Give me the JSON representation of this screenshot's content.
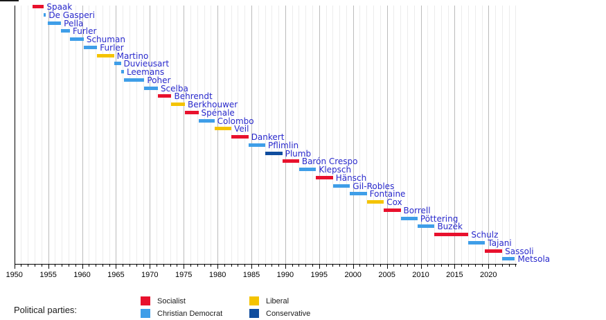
{
  "legend": {
    "heading": "Political parties:",
    "items": [
      {
        "party": "socialist",
        "label": "Socialist"
      },
      {
        "party": "christian_democrat",
        "label": "Christian Democrat"
      },
      {
        "party": "liberal",
        "label": "Liberal"
      },
      {
        "party": "conservative",
        "label": "Conservative"
      }
    ]
  },
  "parties": {
    "socialist": {
      "label": "Socialist",
      "color": "#e8112d"
    },
    "christian_democrat": {
      "label": "Christian Democrat",
      "color": "#3f9ee8"
    },
    "liberal": {
      "label": "Liberal",
      "color": "#f4c300"
    },
    "conservative": {
      "label": "Conservative",
      "color": "#0f4d9e"
    }
  },
  "colors": {
    "bar_label_text": "#2929cc",
    "axis": "#000000",
    "major_gridline": "#bbbbbb",
    "minor_gridline": "#ececec"
  },
  "chart_data": {
    "type": "bar",
    "subtype": "timeline",
    "title": "",
    "xlabel": "",
    "ylabel": "",
    "x_axis": {
      "min": 1950,
      "max": 2024.2,
      "major_tick_interval": 5,
      "minor_tick_interval": 1,
      "tick_labels": [
        "1950",
        "1955",
        "1960",
        "1965",
        "1970",
        "1975",
        "1980",
        "1985",
        "1990",
        "1995",
        "2000",
        "2005",
        "2010",
        "2015",
        "2020"
      ]
    },
    "grid": true,
    "legend_position": "bottom",
    "rows": [
      {
        "name": "Spaak",
        "party": "socialist",
        "start": 1952.7,
        "end": 1954.36
      },
      {
        "name": "De Gasperi",
        "party": "christian_democrat",
        "start": 1954.36,
        "end": 1954.63
      },
      {
        "name": "Pella",
        "party": "christian_democrat",
        "start": 1954.89,
        "end": 1956.9
      },
      {
        "name": "Furler",
        "party": "christian_democrat",
        "start": 1956.9,
        "end": 1958.21
      },
      {
        "name": "Schuman",
        "party": "christian_democrat",
        "start": 1958.21,
        "end": 1960.24
      },
      {
        "name": "Furler",
        "party": "christian_democrat",
        "start": 1960.24,
        "end": 1962.23
      },
      {
        "name": "Martino",
        "party": "liberal",
        "start": 1962.23,
        "end": 1964.72
      },
      {
        "name": "Duvieusart",
        "party": "christian_democrat",
        "start": 1964.72,
        "end": 1965.73
      },
      {
        "name": "Leemans",
        "party": "christian_democrat",
        "start": 1965.73,
        "end": 1966.18
      },
      {
        "name": "Poher",
        "party": "christian_democrat",
        "start": 1966.18,
        "end": 1969.19
      },
      {
        "name": "Scelba",
        "party": "christian_democrat",
        "start": 1969.19,
        "end": 1971.19
      },
      {
        "name": "Behrendt",
        "party": "socialist",
        "start": 1971.19,
        "end": 1973.19
      },
      {
        "name": "Berkhouwer",
        "party": "liberal",
        "start": 1973.19,
        "end": 1975.19
      },
      {
        "name": "Spénale",
        "party": "socialist",
        "start": 1975.19,
        "end": 1977.18
      },
      {
        "name": "Colombo",
        "party": "christian_democrat",
        "start": 1977.18,
        "end": 1979.54
      },
      {
        "name": "Veil",
        "party": "liberal",
        "start": 1979.54,
        "end": 1982.05
      },
      {
        "name": "Dankert",
        "party": "socialist",
        "start": 1982.05,
        "end": 1984.56
      },
      {
        "name": "Pflimlin",
        "party": "christian_democrat",
        "start": 1984.56,
        "end": 1987.05
      },
      {
        "name": "Plumb",
        "party": "conservative",
        "start": 1987.05,
        "end": 1989.56
      },
      {
        "name": "Barón Crespo",
        "party": "socialist",
        "start": 1989.56,
        "end": 1992.04
      },
      {
        "name": "Klepsch",
        "party": "christian_democrat",
        "start": 1992.04,
        "end": 1994.55
      },
      {
        "name": "Hänsch",
        "party": "socialist",
        "start": 1994.55,
        "end": 1997.04
      },
      {
        "name": "Gil-Robles",
        "party": "christian_democrat",
        "start": 1997.04,
        "end": 1999.55
      },
      {
        "name": "Fontaine",
        "party": "christian_democrat",
        "start": 1999.55,
        "end": 2002.04
      },
      {
        "name": "Cox",
        "party": "liberal",
        "start": 2002.04,
        "end": 2004.55
      },
      {
        "name": "Borrell",
        "party": "socialist",
        "start": 2004.55,
        "end": 2007.04
      },
      {
        "name": "Pöttering",
        "party": "christian_democrat",
        "start": 2007.04,
        "end": 2009.53
      },
      {
        "name": "Buzek",
        "party": "christian_democrat",
        "start": 2009.53,
        "end": 2012.04
      },
      {
        "name": "Schulz",
        "party": "socialist",
        "start": 2012.04,
        "end": 2017.04
      },
      {
        "name": "Tajani",
        "party": "christian_democrat",
        "start": 2017.04,
        "end": 2019.5
      },
      {
        "name": "Sassoli",
        "party": "socialist",
        "start": 2019.5,
        "end": 2022.03
      },
      {
        "name": "Metsola",
        "party": "christian_democrat",
        "start": 2022.05,
        "end": 2023.9
      }
    ]
  }
}
